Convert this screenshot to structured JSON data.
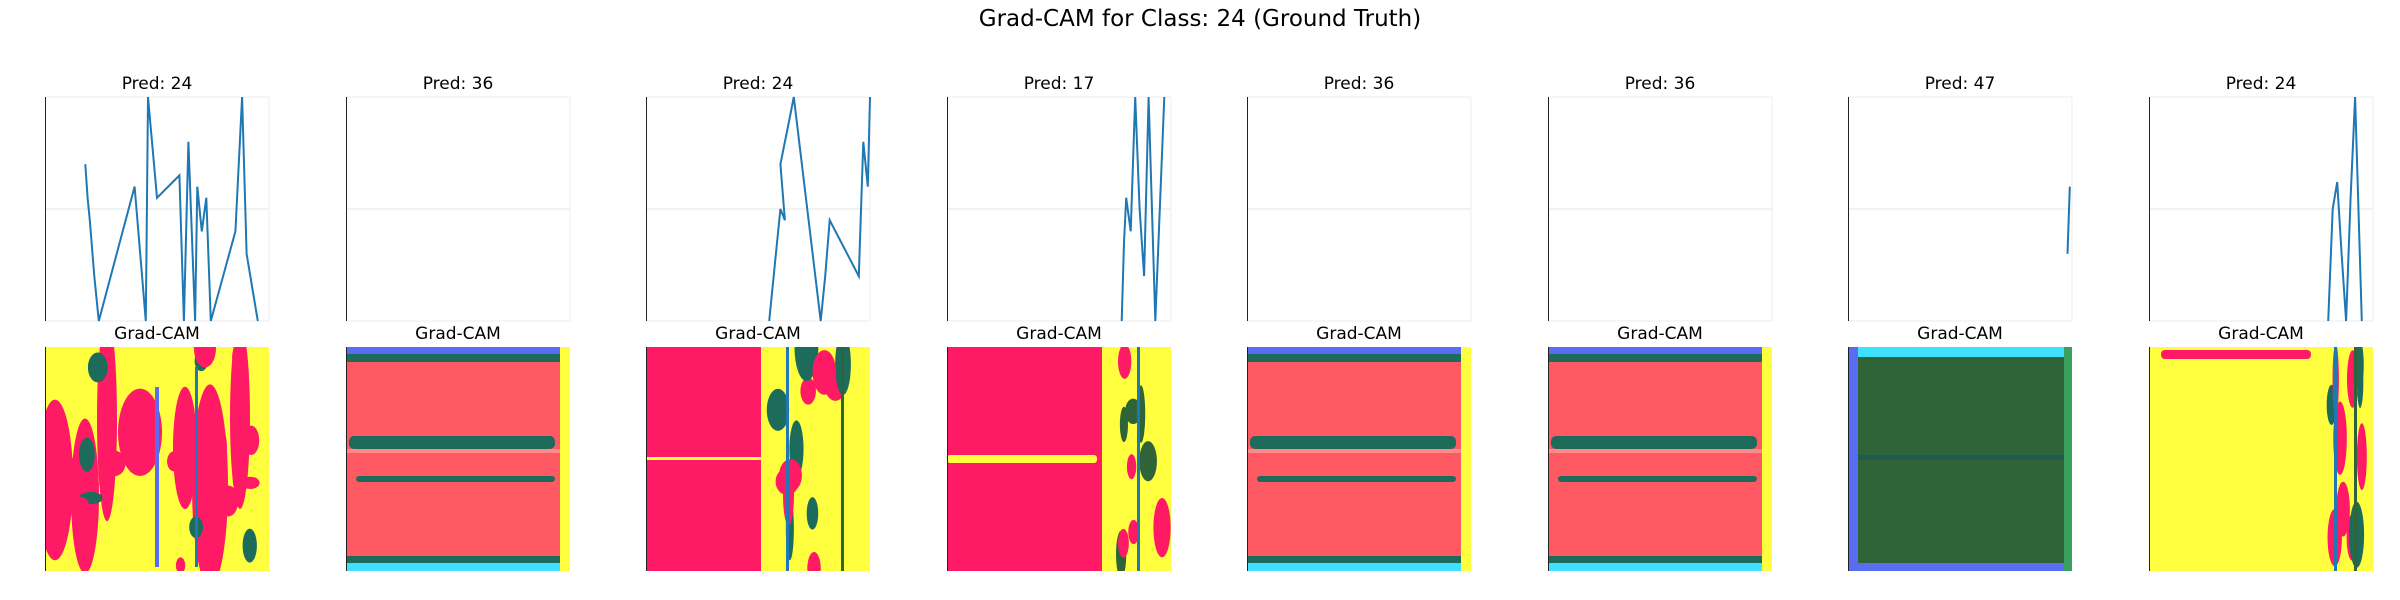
{
  "title": "Grad-CAM for Class: 24 (Ground Truth)",
  "heatmap_title": "Grad-CAM",
  "colors": {
    "line": "#1f77b4",
    "cam_red": "#ff5a64",
    "cam_crimson": "#ff1a66",
    "cam_yellow": "#ffff40",
    "cam_teal": "#1d6b5a",
    "cam_olive": "#2e6438",
    "cam_blue": "#5a6cf0",
    "cam_cyan": "#40e0ff"
  },
  "chart_data": [
    {
      "type": "line",
      "title": "Pred: 24",
      "heatmap": "mixed_yellow_red",
      "series": [
        {
          "x": [
            0.18,
            0.19,
            0.2,
            0.22,
            0.24,
            0.4,
            0.45,
            0.46,
            0.5,
            0.6,
            0.62,
            0.64,
            0.67,
            0.68,
            0.7,
            0.72,
            0.74,
            0.85,
            0.88,
            0.9,
            0.95
          ],
          "y": [
            0.7,
            0.55,
            0.45,
            0.2,
            0.0,
            0.6,
            0.0,
            1.0,
            0.55,
            0.65,
            0.0,
            0.8,
            0.0,
            0.6,
            0.4,
            0.55,
            0.0,
            0.4,
            1.0,
            0.3,
            0.0
          ]
        }
      ]
    },
    {
      "type": "line",
      "title": "Pred: 36",
      "heatmap": "red_bands",
      "series": [
        {
          "x": [],
          "y": []
        }
      ]
    },
    {
      "type": "line",
      "title": "Pred: 24",
      "heatmap": "crimson_right_noise",
      "series": [
        {
          "x": [
            0.55,
            0.58,
            0.6,
            0.62,
            0.6,
            0.64,
            0.66,
            0.78,
            0.8,
            0.82,
            0.95,
            0.97,
            0.99,
            1.0
          ],
          "y": [
            0.0,
            0.3,
            0.5,
            0.45,
            0.7,
            0.9,
            1.0,
            0.0,
            0.2,
            0.45,
            0.2,
            0.8,
            0.6,
            1.0
          ]
        }
      ]
    },
    {
      "type": "line",
      "title": "Pred: 17",
      "heatmap": "crimson_yellow",
      "series": [
        {
          "x": [
            0.78,
            0.79,
            0.8,
            0.82,
            0.84,
            0.86,
            0.88,
            0.9,
            0.93,
            0.97
          ],
          "y": [
            0.0,
            0.35,
            0.55,
            0.4,
            1.0,
            0.5,
            0.2,
            1.0,
            0.0,
            1.0
          ]
        }
      ]
    },
    {
      "type": "line",
      "title": "Pred: 36",
      "heatmap": "red_bands",
      "series": [
        {
          "x": [],
          "y": []
        }
      ]
    },
    {
      "type": "line",
      "title": "Pred: 36",
      "heatmap": "red_bands",
      "series": [
        {
          "x": [],
          "y": []
        }
      ]
    },
    {
      "type": "line",
      "title": "Pred: 47",
      "heatmap": "olive",
      "series": [
        {
          "x": [
            0.98,
            0.99
          ],
          "y": [
            0.3,
            0.6
          ]
        }
      ]
    },
    {
      "type": "line",
      "title": "Pred: 24",
      "heatmap": "yellow_right_noise",
      "series": [
        {
          "x": [
            0.8,
            0.82,
            0.84,
            0.86,
            0.88,
            0.9,
            0.92,
            0.95
          ],
          "y": [
            0.0,
            0.5,
            0.62,
            0.3,
            0.0,
            0.55,
            1.0,
            0.0
          ]
        }
      ]
    }
  ]
}
